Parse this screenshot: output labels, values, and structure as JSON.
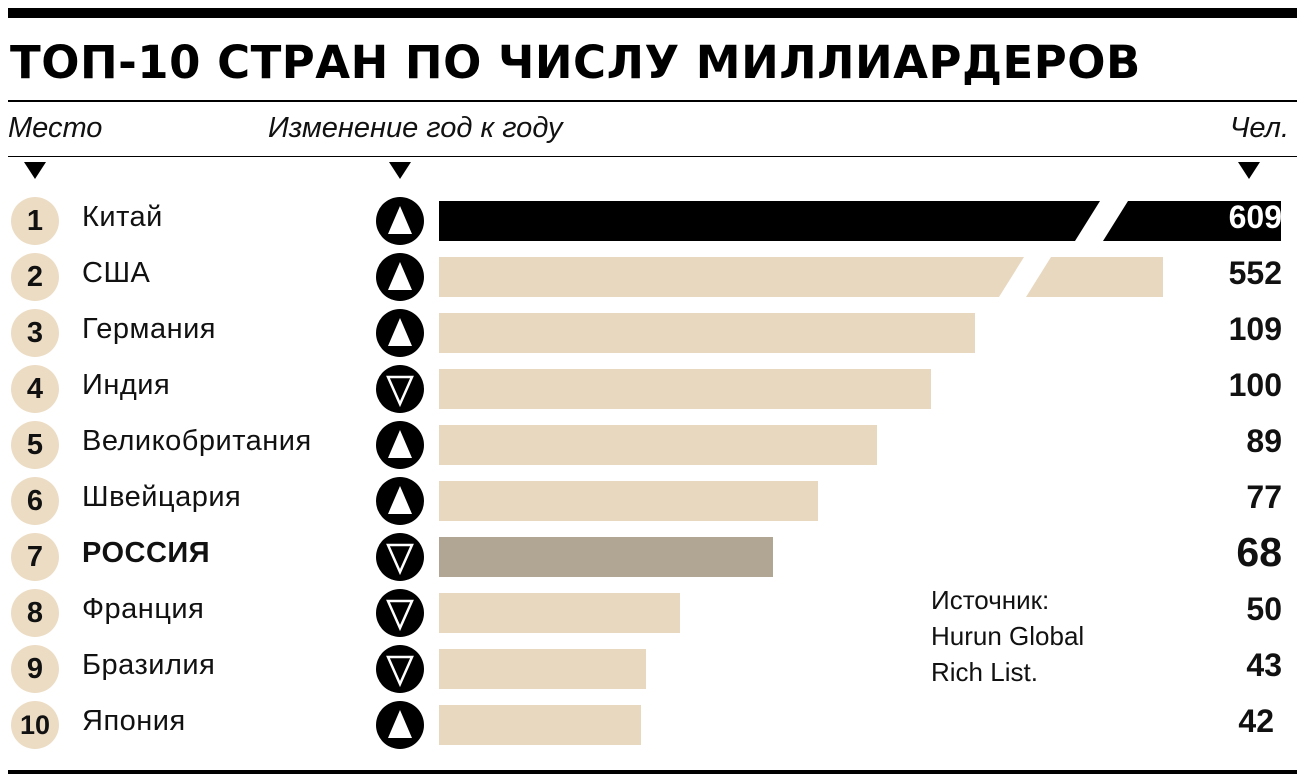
{
  "title": "ТОП-10 СТРАН ПО ЧИСЛУ МИЛЛИАРДЕРОВ",
  "headers": {
    "rank": "Место",
    "change": "Изменение год к году",
    "value": "Чел."
  },
  "source": {
    "line1": "Источник:",
    "line2": "Hurun Global",
    "line3": "Rich List."
  },
  "colors": {
    "bar_default": "#e8d8bf",
    "bar_top": "#000000",
    "bar_highlight": "#b1a593",
    "rank_circle": "#ecdcc4"
  },
  "chart_data": {
    "type": "bar",
    "orientation": "horizontal",
    "title": "ТОП-10 СТРАН ПО ЧИСЛУ МИЛЛИАРДЕРОВ",
    "value_label": "Чел.",
    "axis_break": true,
    "rows": [
      {
        "rank": "1",
        "country": "Китай",
        "value": 609,
        "change": "up",
        "label": "609",
        "style": "top"
      },
      {
        "rank": "2",
        "country": "США",
        "value": 552,
        "change": "up",
        "label": "552",
        "style": "default"
      },
      {
        "rank": "3",
        "country": "Германия",
        "value": 109,
        "change": "up",
        "label": "109",
        "style": "default"
      },
      {
        "rank": "4",
        "country": "Индия",
        "value": 100,
        "change": "down",
        "label": "100",
        "style": "default"
      },
      {
        "rank": "5",
        "country": "Великобритания",
        "value": 89,
        "change": "up",
        "label": "89",
        "style": "default"
      },
      {
        "rank": "6",
        "country": "Швейцария",
        "value": 77,
        "change": "up",
        "label": "77",
        "style": "default"
      },
      {
        "rank": "7",
        "country": "РОССИЯ",
        "value": 68,
        "change": "down",
        "label": "68",
        "style": "highlight"
      },
      {
        "rank": "8",
        "country": "Франция",
        "value": 50,
        "change": "down",
        "label": "50",
        "style": "default"
      },
      {
        "rank": "9",
        "country": "Бразилия",
        "value": 43,
        "change": "down",
        "label": "43",
        "style": "default"
      },
      {
        "rank": "10",
        "country": "Япония",
        "value": 42,
        "change": "up",
        "label": "42",
        "style": "default"
      }
    ]
  }
}
